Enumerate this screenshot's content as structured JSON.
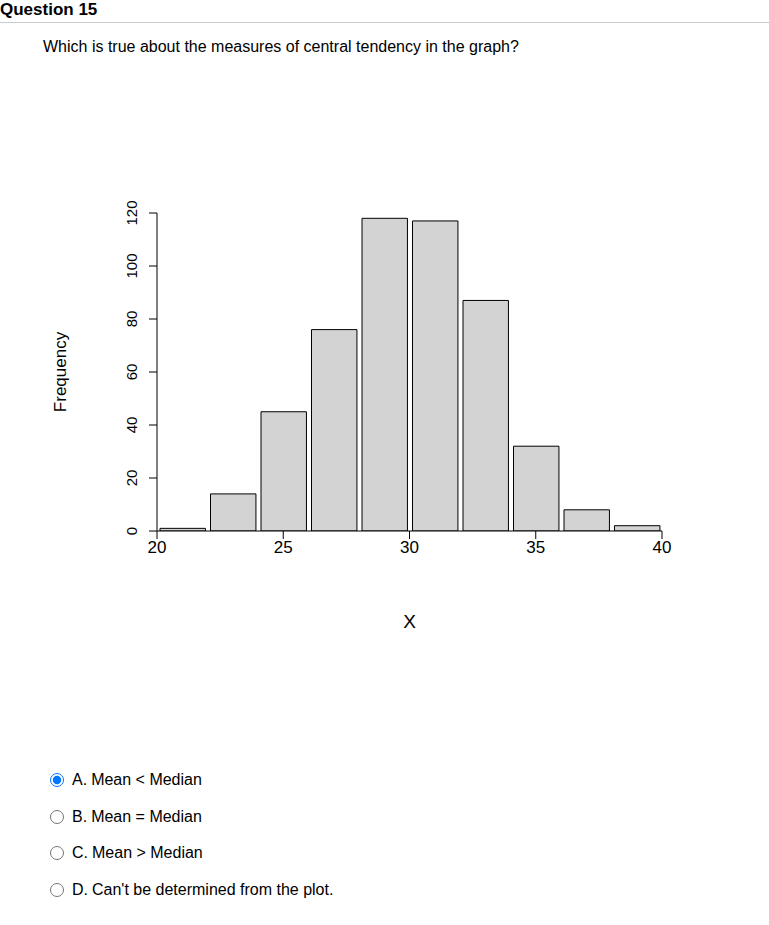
{
  "header": {
    "title": "Question 15"
  },
  "question": "Which is true about the measures of central tendency in the graph?",
  "chart_data": {
    "type": "histogram",
    "bins": [
      20,
      22,
      24,
      26,
      28,
      30,
      32,
      34,
      36,
      38,
      40
    ],
    "values": [
      1,
      14,
      45,
      76,
      118,
      117,
      87,
      32,
      8,
      2
    ],
    "color": "#d3d3d3",
    "x_label": "X",
    "y_label": "Frequency",
    "xlim": [
      20,
      40
    ],
    "xticks": [
      20,
      25,
      30,
      35,
      40
    ],
    "ylim": [
      0,
      120
    ],
    "yticks": [
      0,
      20,
      40,
      60,
      80,
      100,
      120
    ],
    "grid": false
  },
  "options": [
    {
      "letter": "A.",
      "text": "Mean < Median"
    },
    {
      "letter": "B.",
      "text": "Mean = Median"
    },
    {
      "letter": "C.",
      "text": "Mean > Median"
    },
    {
      "letter": "D.",
      "text": "Can't be determined from the plot."
    }
  ],
  "selected": "A."
}
